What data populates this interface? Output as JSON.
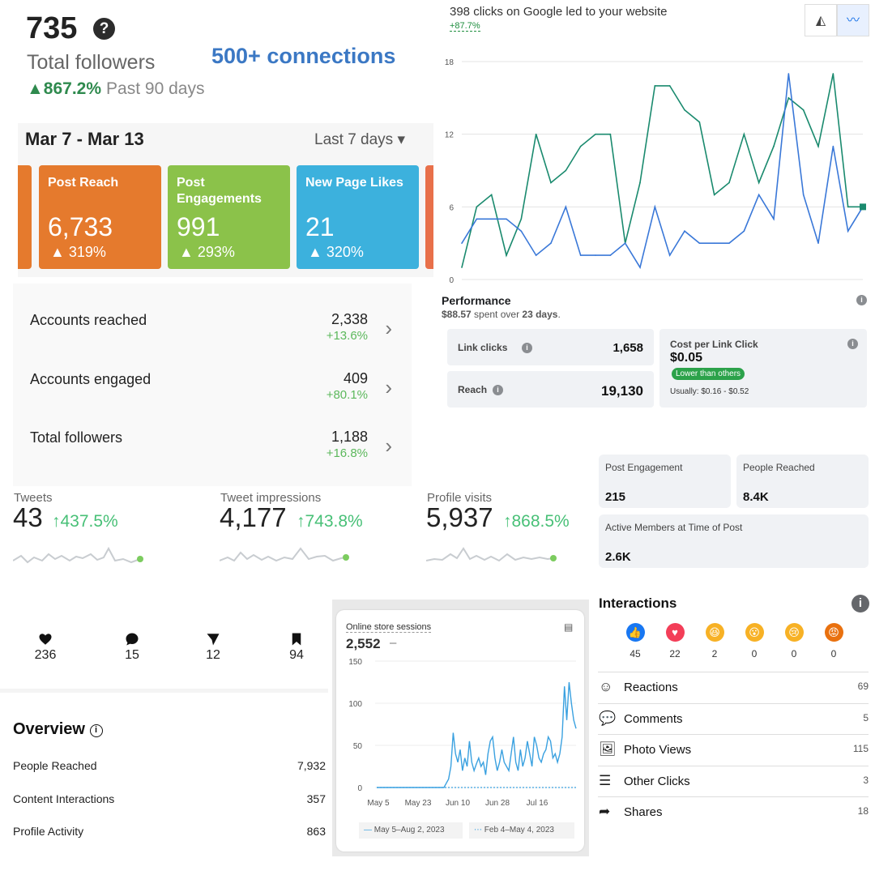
{
  "followers": {
    "count": "735",
    "label": "Total followers",
    "connections": "500+ connections",
    "change": "867.2%",
    "period": "Past 90 days"
  },
  "fb_week": {
    "range": "Mar 7 - Mar 13",
    "selector": "Last 7 days",
    "cards": [
      {
        "title": "Post Reach",
        "value": "6,733",
        "change": "319%",
        "color": "#e57a2d"
      },
      {
        "title": "Post Engagements",
        "value": "991",
        "change": "293%",
        "color": "#8bc24a"
      },
      {
        "title": "New Page Likes",
        "value": "21",
        "change": "320%",
        "color": "#3cb1dd"
      }
    ]
  },
  "google": {
    "title": "398 clicks on Google led to your website",
    "change": "+87.7%",
    "colors": {
      "series_a": "#1a8a6e",
      "series_b": "#3a78d8"
    }
  },
  "chart_data": [
    {
      "type": "line",
      "title": "398 clicks on Google led to your website",
      "ylim": [
        0,
        18
      ],
      "yticks": [
        "0",
        "6",
        "12",
        "18"
      ],
      "x": [
        1,
        2,
        3,
        4,
        5,
        6,
        7,
        8,
        9,
        10,
        11,
        12,
        13,
        14,
        15,
        16,
        17,
        18,
        19,
        20,
        21,
        22,
        23,
        24,
        25,
        26,
        27,
        28
      ],
      "series": [
        {
          "values": [
            1,
            6,
            7,
            2,
            5,
            12,
            8,
            9,
            11,
            12,
            12,
            3,
            8,
            16,
            16,
            14,
            13,
            7,
            8,
            12,
            8,
            11,
            15,
            14,
            11,
            17,
            6,
            6
          ]
        },
        {
          "values": [
            3,
            5,
            5,
            5,
            4,
            2,
            3,
            6,
            2,
            2,
            2,
            3,
            1,
            6,
            2,
            4,
            3,
            3,
            3,
            4,
            7,
            5,
            17,
            7,
            3,
            11,
            4,
            6
          ]
        }
      ]
    },
    {
      "type": "line",
      "title": "Online store sessions",
      "ylim": [
        0,
        150
      ],
      "yticks": [
        "0",
        "50",
        "100",
        "150"
      ],
      "xticks": [
        "May 5",
        "May 23",
        "Jun 10",
        "Jun 28",
        "Jul 16"
      ],
      "series": [
        {
          "name": "May 5–Aug 2, 2023",
          "values": [
            0,
            0,
            0,
            0,
            0,
            0,
            0,
            0,
            0,
            0,
            0,
            0,
            0,
            0,
            0,
            0,
            0,
            0,
            0,
            0,
            0,
            0,
            0,
            0,
            0,
            0,
            0,
            0,
            0,
            0,
            5,
            10,
            25,
            65,
            40,
            30,
            45,
            20,
            35,
            25,
            55,
            30,
            20,
            28,
            35,
            25,
            30,
            15,
            40,
            55,
            60,
            35,
            20,
            30,
            45,
            30,
            25,
            20,
            40,
            60,
            30,
            20,
            45,
            25,
            35,
            55,
            40,
            25,
            60,
            50,
            35,
            30,
            40,
            45,
            60,
            55,
            35,
            40,
            30,
            40,
            60,
            120,
            80,
            125,
            100,
            80,
            70
          ]
        },
        {
          "name": "Feb 4–May 4, 2023",
          "values": [
            0,
            0,
            0,
            0,
            0,
            0,
            0,
            0,
            0,
            0,
            0,
            0,
            0,
            0,
            0,
            0,
            0,
            0,
            0,
            0,
            0,
            0,
            0,
            0,
            0,
            0,
            0,
            0,
            0,
            0,
            0,
            0,
            0,
            0,
            0,
            0,
            0,
            0,
            0,
            0,
            0,
            0,
            0,
            0,
            0,
            0,
            0,
            0,
            0,
            0,
            0,
            0,
            0,
            0,
            0,
            0,
            0,
            0,
            0,
            0,
            0,
            0,
            0,
            0,
            0,
            0,
            0,
            0,
            0,
            0,
            0,
            0,
            0,
            0,
            0,
            0,
            0,
            0,
            0,
            0,
            0,
            0,
            0,
            0,
            0,
            0,
            0
          ]
        }
      ]
    }
  ],
  "ig_accounts": {
    "rows": [
      {
        "name": "Accounts reached",
        "value": "2,338",
        "change": "+13.6%"
      },
      {
        "name": "Accounts engaged",
        "value": "409",
        "change": "+80.1%"
      },
      {
        "name": "Total followers",
        "value": "1,188",
        "change": "+16.8%"
      }
    ]
  },
  "performance": {
    "title": "Performance",
    "spent": "$88.57",
    "spent_mid": " spent over ",
    "days": "23 days",
    "link_clicks_label": "Link clicks",
    "link_clicks": "1,658",
    "reach_label": "Reach",
    "reach": "19,130",
    "cpc_label": "Cost per Link Click",
    "cpc": "$0.05",
    "badge": "Lower than others",
    "usual": "Usually: $0.16 - $0.52"
  },
  "twitter": [
    {
      "label": "Tweets",
      "value": "43",
      "change": "437.5%"
    },
    {
      "label": "Tweet impressions",
      "value": "4,177",
      "change": "743.8%"
    },
    {
      "label": "Profile visits",
      "value": "5,937",
      "change": "868.5%"
    }
  ],
  "group": {
    "post_engagement_label": "Post Engagement",
    "post_engagement": "215",
    "people_reached_label": "People Reached",
    "people_reached": "8.4K",
    "active_label": "Active Members at Time of Post",
    "active": "2.6K"
  },
  "post_stats": [
    {
      "icon": "heart-icon",
      "value": "236"
    },
    {
      "icon": "comment-icon",
      "value": "15"
    },
    {
      "icon": "share-icon",
      "value": "12"
    },
    {
      "icon": "bookmark-icon",
      "value": "94"
    }
  ],
  "overview": {
    "title": "Overview",
    "rows": [
      {
        "name": "People Reached",
        "value": "7,932"
      },
      {
        "name": "Content Interactions",
        "value": "357"
      },
      {
        "name": "Profile Activity",
        "value": "863"
      }
    ]
  },
  "shopify": {
    "title": "Online store sessions",
    "value": "2,552",
    "dash": "–",
    "legend_current": "May 5–Aug 2, 2023",
    "legend_prev": "Feb 4–May 4, 2023"
  },
  "interactions": {
    "title": "Interactions",
    "emojis": [
      {
        "icon": "like-icon",
        "value": "45",
        "color": "#1877f2",
        "glyph": "👍"
      },
      {
        "icon": "love-icon",
        "value": "22",
        "color": "#f33e58",
        "glyph": "♥"
      },
      {
        "icon": "haha-icon",
        "value": "2",
        "color": "#f7b125",
        "glyph": "😆"
      },
      {
        "icon": "wow-icon",
        "value": "0",
        "color": "#f7b125",
        "glyph": "😮"
      },
      {
        "icon": "sad-icon",
        "value": "0",
        "color": "#f7b125",
        "glyph": "😢"
      },
      {
        "icon": "angry-icon",
        "value": "0",
        "color": "#e9710f",
        "glyph": "😡"
      }
    ],
    "rows": [
      {
        "icon": "reactions-icon",
        "name": "Reactions",
        "value": "69"
      },
      {
        "icon": "comments-icon",
        "name": "Comments",
        "value": "5"
      },
      {
        "icon": "photo-views-icon",
        "name": "Photo Views",
        "value": "115"
      },
      {
        "icon": "other-clicks-icon",
        "name": "Other Clicks",
        "value": "3"
      },
      {
        "icon": "shares-icon",
        "name": "Shares",
        "value": "18"
      }
    ]
  }
}
